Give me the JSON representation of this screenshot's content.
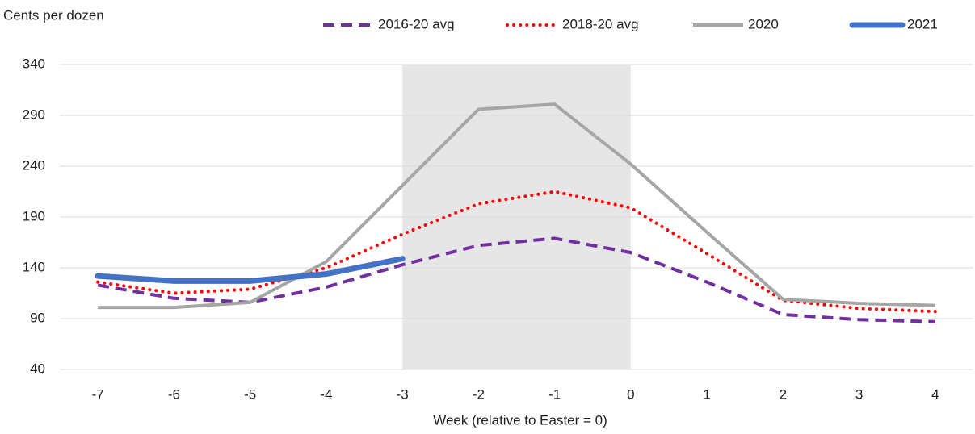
{
  "chart_data": {
    "type": "line",
    "y_axis_label": "Cents per dozen",
    "x_axis_label": "Week (relative to Easter = 0)",
    "x": [
      -7,
      -6,
      -5,
      -4,
      -3,
      -2,
      -1,
      0,
      1,
      2,
      3,
      4
    ],
    "highlight_x": [
      -3,
      0
    ],
    "highlight_color": "#e6e6e6",
    "series": [
      {
        "name": "2016-20 avg",
        "color": "#7030a0",
        "dash": "dashed",
        "values": [
          123,
          110,
          106,
          121,
          143,
          162,
          169,
          155,
          126,
          94,
          89,
          87
        ]
      },
      {
        "name": "2018-20 avg",
        "color": "#ff0000",
        "dash": "dotted",
        "values": [
          126,
          115,
          119,
          140,
          173,
          203,
          215,
          199,
          154,
          108,
          100,
          97
        ]
      },
      {
        "name": "2020",
        "color": "#a6a6a6",
        "dash": "solid",
        "values": [
          101,
          101,
          106,
          146,
          221,
          296,
          301,
          242,
          175,
          109,
          105,
          103
        ]
      },
      {
        "name": "2021",
        "color": "#4472c4",
        "dash": "thick",
        "values": [
          132,
          127,
          127,
          134,
          149,
          null,
          null,
          null,
          null,
          null,
          null,
          null
        ]
      }
    ],
    "ylim": [
      40,
      340
    ],
    "yticks": [
      40,
      90,
      140,
      190,
      240,
      290,
      340
    ],
    "grid": true
  }
}
